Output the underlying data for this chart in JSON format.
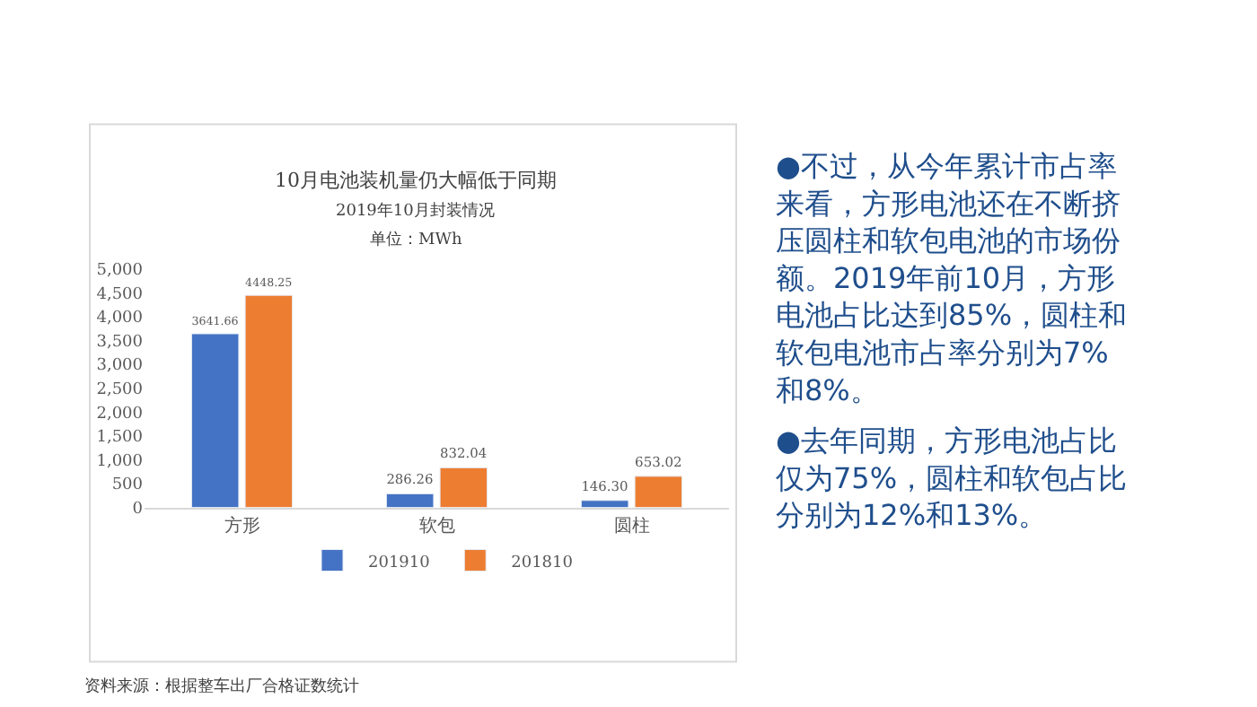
{
  "chart_data": {
    "type": "bar",
    "title": "10月电池装机量仍大幅低于同期",
    "subtitle": "2019年10月封装情况",
    "categories": [
      "方形",
      "软包",
      "圆柱"
    ],
    "series": [
      {
        "name": "201910",
        "color": "#4472c4",
        "values": [
          3641.66,
          286.26,
          146.3
        ],
        "value_labels": [
          "3641.66",
          "286.26",
          "146.30"
        ]
      },
      {
        "name": "201810",
        "color": "#ed7d31",
        "values": [
          4448.25,
          832.04,
          653.02
        ],
        "value_labels": [
          "4448.25",
          "832.04",
          "653.02"
        ]
      }
    ],
    "ylim": [
      0,
      5000
    ],
    "yticks": [
      0,
      500,
      {
        "value": 1000,
        "label": "1,000"
      },
      {
        "value": 1500,
        "label": "1,500"
      },
      {
        "value": 2000,
        "label": "2,000"
      },
      {
        "value": 2500,
        "label": "2,500"
      },
      {
        "value": 3000,
        "label": "3,000"
      },
      {
        "value": 3500,
        "label": "3,500"
      },
      {
        "value": 4000,
        "label": "4,000"
      },
      {
        "value": 4500,
        "label": "4,500"
      },
      {
        "value": 5000,
        "label": "5,000"
      }
    ],
    "legend": "bottom",
    "annotations": [
      "单位：MWh",
      "●不过，从今年累计市占率来看，方形电池还在不断挤压圆柱和软包电池的市场份额。2019年前10月，方形电池占比达到85%，圆柱和软包电池市占率分别为7%和8%。",
      "●去年同期，方形电池占比仅为75%，圆柱和软包占比分别为12%和13%。",
      "资料来源：根据整车出厂合格证数统计"
    ]
  }
}
